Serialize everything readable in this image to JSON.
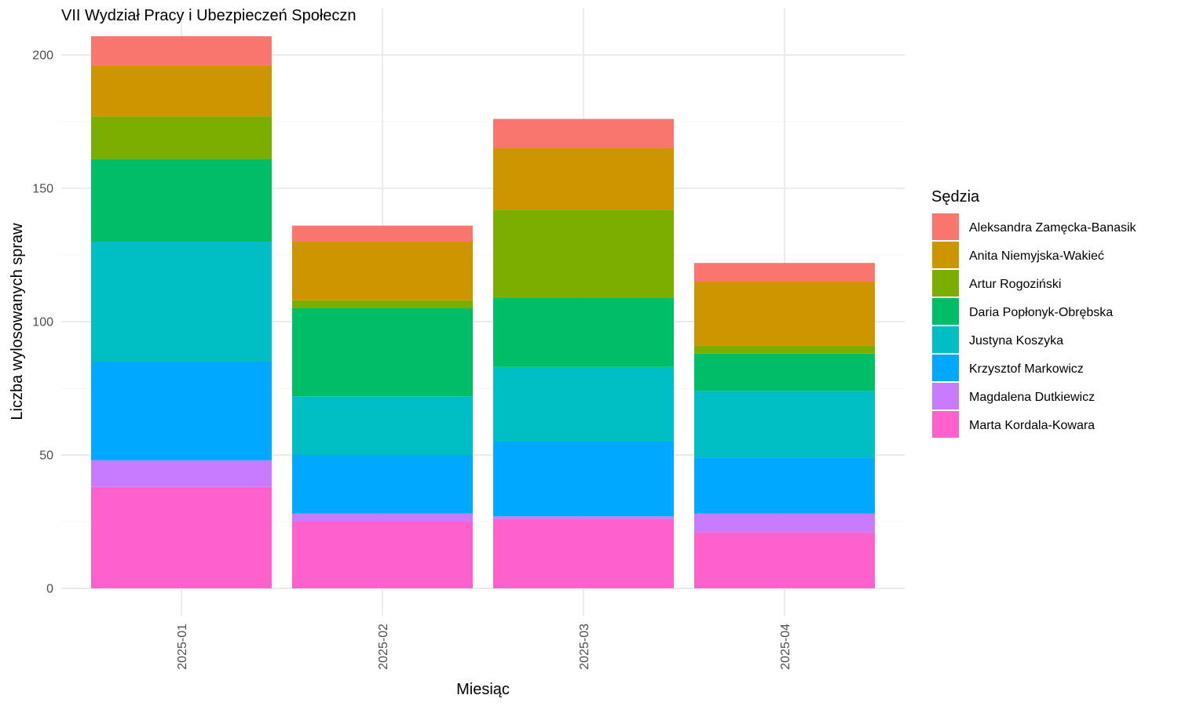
{
  "chart_data": {
    "type": "bar",
    "stacked": true,
    "title": "VII Wydział Pracy i Ubezpieczeń Społeczn",
    "xlabel": "Miesiąc",
    "ylabel": "Liczba wylosowanych spraw",
    "legend_title": "Sędzia",
    "legend_position": "right",
    "grid": true,
    "ylim": [
      0,
      210
    ],
    "yticks": [
      0,
      50,
      100,
      150,
      200
    ],
    "categories": [
      "2025-01",
      "2025-02",
      "2025-03",
      "2025-04"
    ],
    "series": [
      {
        "name": "Marta Kordala-Kowara",
        "color": "#FF61CC",
        "values": [
          38,
          25,
          26,
          21
        ]
      },
      {
        "name": "Magdalena Dutkiewicz",
        "color": "#C77CFF",
        "values": [
          10,
          3,
          1,
          7
        ]
      },
      {
        "name": "Krzysztof Markowicz",
        "color": "#00A9FF",
        "values": [
          37,
          22,
          28,
          21
        ]
      },
      {
        "name": "Justyna Koszyka",
        "color": "#00BFC4",
        "values": [
          45,
          22,
          28,
          25
        ]
      },
      {
        "name": "Daria Popłonyk-Obrębska",
        "color": "#00BE67",
        "values": [
          31,
          33,
          26,
          14
        ]
      },
      {
        "name": "Artur Rogoziński",
        "color": "#7CAE00",
        "values": [
          16,
          3,
          33,
          3
        ]
      },
      {
        "name": "Anita Niemyjska-Wakieć",
        "color": "#CD9600",
        "values": [
          19,
          22,
          23,
          24
        ]
      },
      {
        "name": "Aleksandra Zamęcka-Banasik",
        "color": "#F8766D",
        "values": [
          11,
          6,
          11,
          7
        ]
      }
    ],
    "legend_order": [
      "Aleksandra Zamęcka-Banasik",
      "Anita Niemyjska-Wakieć",
      "Artur Rogoziński",
      "Daria Popłonyk-Obrębska",
      "Justyna Koszyka",
      "Krzysztof Markowicz",
      "Magdalena Dutkiewicz",
      "Marta Kordala-Kowara"
    ]
  }
}
